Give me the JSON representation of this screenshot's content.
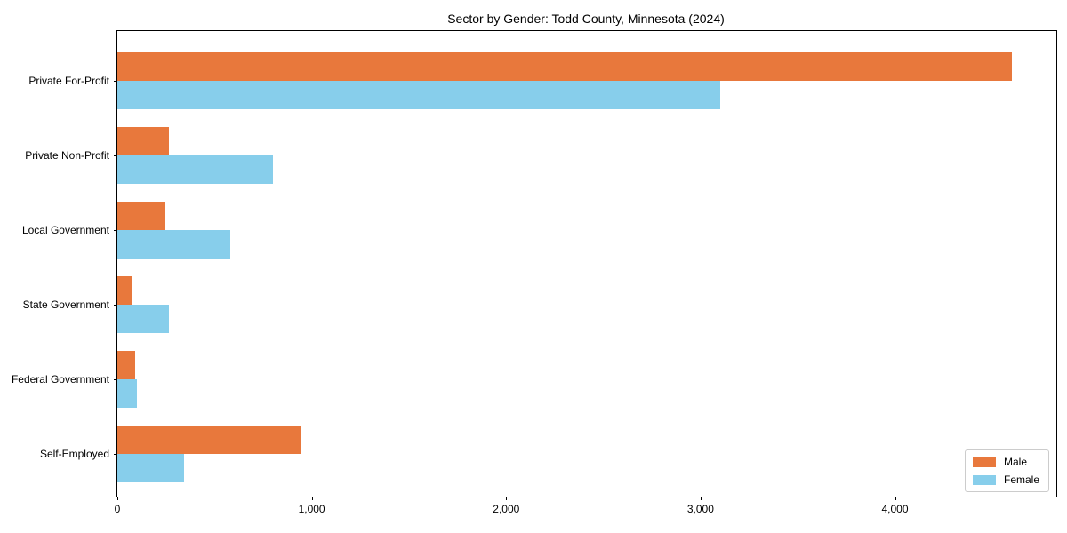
{
  "title": "Sector by Gender: Todd County, Minnesota (2024)",
  "colors": {
    "male": "#e8783c",
    "female": "#87ceeb",
    "axis": "#000000",
    "legend_border": "#cccccc",
    "background": "#ffffff"
  },
  "chart_data": {
    "type": "bar",
    "orientation": "horizontal",
    "title": "Sector by Gender: Todd County, Minnesota (2024)",
    "categories": [
      "Private For-Profit",
      "Private Non-Profit",
      "Local Government",
      "State Government",
      "Federal Government",
      "Self-Employed"
    ],
    "series": [
      {
        "name": "Male",
        "color": "#e8783c",
        "values": [
          4600,
          265,
          245,
          75,
          90,
          945
        ]
      },
      {
        "name": "Female",
        "color": "#87ceeb",
        "values": [
          3100,
          800,
          580,
          265,
          100,
          345
        ]
      }
    ],
    "xlabel": "",
    "ylabel": "",
    "xlim": [
      0,
      4830
    ],
    "x_tick_values": [
      0,
      1000,
      2000,
      3000,
      4000
    ],
    "x_tick_labels": [
      "0",
      "1,000",
      "2,000",
      "3,000",
      "4,000"
    ],
    "grid": false,
    "legend_position": "lower right",
    "legend_entries": [
      "Male",
      "Female"
    ]
  }
}
